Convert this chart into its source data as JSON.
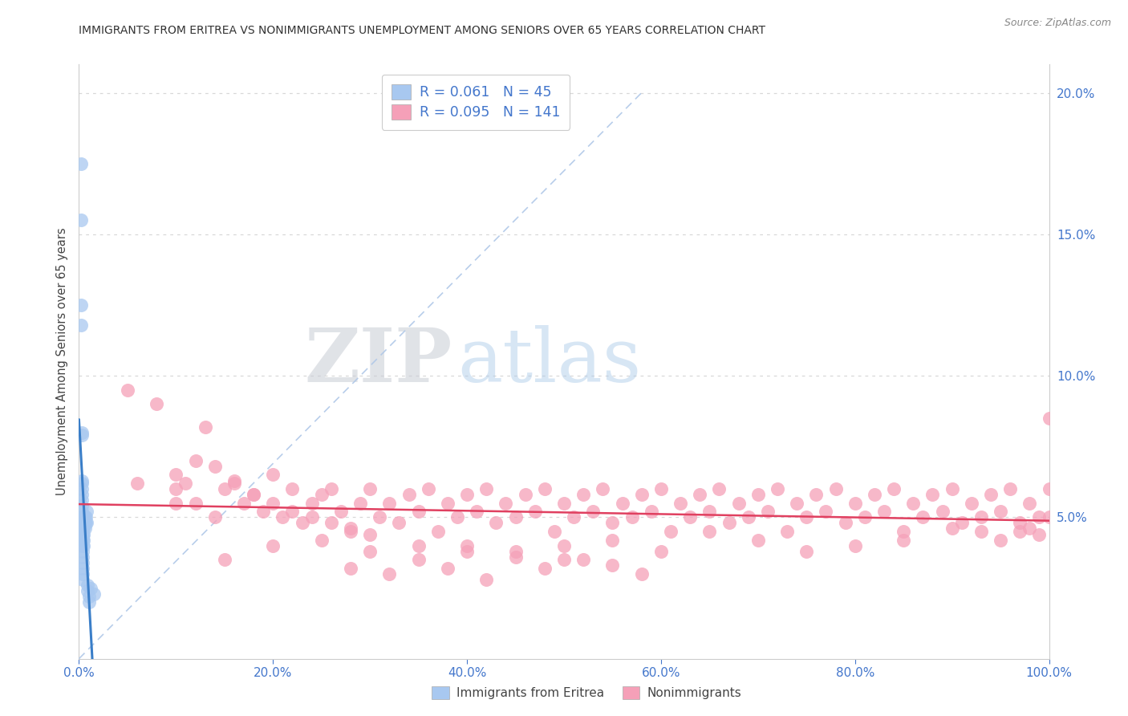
{
  "title": "IMMIGRANTS FROM ERITREA VS NONIMMIGRANTS UNEMPLOYMENT AMONG SENIORS OVER 65 YEARS CORRELATION CHART",
  "source": "Source: ZipAtlas.com",
  "ylabel": "Unemployment Among Seniors over 65 years",
  "xlim": [
    0.0,
    1.0
  ],
  "ylim": [
    0.0,
    0.21
  ],
  "yticks": [
    0.05,
    0.1,
    0.15,
    0.2
  ],
  "yticklabels": [
    "5.0%",
    "10.0%",
    "15.0%",
    "20.0%"
  ],
  "xticks": [
    0.0,
    0.2,
    0.4,
    0.6,
    0.8,
    1.0
  ],
  "xticklabels": [
    "0.0%",
    "20.0%",
    "40.0%",
    "60.0%",
    "80.0%",
    "100.0%"
  ],
  "legend_blue_label": "Immigrants from Eritrea",
  "legend_pink_label": "Nonimmigrants",
  "legend_blue_R": "0.061",
  "legend_blue_N": "45",
  "legend_pink_R": "0.095",
  "legend_pink_N": "141",
  "blue_scatter_color": "#a8c8f0",
  "pink_scatter_color": "#f5a0b8",
  "blue_line_color": "#3a7ec8",
  "pink_line_color": "#e04060",
  "diagonal_color": "#b0c8e8",
  "tick_color": "#4477cc",
  "title_color": "#333333",
  "source_color": "#888888",
  "grid_color": "#d8d8d8",
  "spine_color": "#cccccc",
  "watermark_zip_color": "#c8d0dc",
  "watermark_atlas_color": "#a8c4e0",
  "blue_x": [
    0.002,
    0.002,
    0.002,
    0.002,
    0.003,
    0.003,
    0.003,
    0.003,
    0.003,
    0.003,
    0.003,
    0.003,
    0.003,
    0.003,
    0.003,
    0.004,
    0.004,
    0.004,
    0.004,
    0.004,
    0.004,
    0.004,
    0.004,
    0.004,
    0.004,
    0.004,
    0.005,
    0.005,
    0.005,
    0.005,
    0.005,
    0.005,
    0.006,
    0.006,
    0.006,
    0.007,
    0.007,
    0.008,
    0.008,
    0.009,
    0.009,
    0.01,
    0.01,
    0.012,
    0.015
  ],
  "blue_y": [
    0.175,
    0.155,
    0.125,
    0.118,
    0.08,
    0.079,
    0.063,
    0.062,
    0.06,
    0.058,
    0.056,
    0.054,
    0.052,
    0.05,
    0.048,
    0.046,
    0.044,
    0.043,
    0.042,
    0.04,
    0.038,
    0.036,
    0.034,
    0.032,
    0.03,
    0.028,
    0.05,
    0.048,
    0.046,
    0.044,
    0.042,
    0.04,
    0.05,
    0.048,
    0.046,
    0.05,
    0.048,
    0.052,
    0.048,
    0.026,
    0.024,
    0.022,
    0.02,
    0.025,
    0.023
  ],
  "pink_x": [
    0.05,
    0.06,
    0.08,
    0.1,
    0.1,
    0.11,
    0.12,
    0.13,
    0.14,
    0.15,
    0.16,
    0.17,
    0.18,
    0.19,
    0.2,
    0.21,
    0.22,
    0.23,
    0.24,
    0.25,
    0.26,
    0.27,
    0.28,
    0.29,
    0.3,
    0.31,
    0.32,
    0.33,
    0.34,
    0.35,
    0.36,
    0.37,
    0.38,
    0.39,
    0.4,
    0.41,
    0.42,
    0.43,
    0.44,
    0.45,
    0.46,
    0.47,
    0.48,
    0.49,
    0.5,
    0.51,
    0.52,
    0.53,
    0.54,
    0.55,
    0.56,
    0.57,
    0.58,
    0.59,
    0.6,
    0.61,
    0.62,
    0.63,
    0.64,
    0.65,
    0.66,
    0.67,
    0.68,
    0.69,
    0.7,
    0.71,
    0.72,
    0.73,
    0.74,
    0.75,
    0.76,
    0.77,
    0.78,
    0.79,
    0.8,
    0.81,
    0.82,
    0.83,
    0.84,
    0.85,
    0.86,
    0.87,
    0.88,
    0.89,
    0.9,
    0.91,
    0.92,
    0.93,
    0.94,
    0.95,
    0.96,
    0.97,
    0.98,
    0.99,
    1.0,
    0.15,
    0.2,
    0.25,
    0.28,
    0.3,
    0.32,
    0.35,
    0.38,
    0.4,
    0.42,
    0.45,
    0.48,
    0.5,
    0.52,
    0.55,
    0.58,
    0.6,
    0.65,
    0.7,
    0.75,
    0.8,
    0.85,
    0.9,
    0.93,
    0.95,
    0.97,
    0.98,
    0.99,
    1.0,
    1.0,
    0.1,
    0.12,
    0.14,
    0.16,
    0.18,
    0.2,
    0.22,
    0.24,
    0.26,
    0.28,
    0.3,
    0.35,
    0.4,
    0.45,
    0.5,
    0.55
  ],
  "pink_y": [
    0.095,
    0.062,
    0.09,
    0.055,
    0.06,
    0.062,
    0.055,
    0.082,
    0.05,
    0.06,
    0.063,
    0.055,
    0.058,
    0.052,
    0.065,
    0.05,
    0.06,
    0.048,
    0.055,
    0.058,
    0.06,
    0.052,
    0.045,
    0.055,
    0.06,
    0.05,
    0.055,
    0.048,
    0.058,
    0.052,
    0.06,
    0.045,
    0.055,
    0.05,
    0.058,
    0.052,
    0.06,
    0.048,
    0.055,
    0.05,
    0.058,
    0.052,
    0.06,
    0.045,
    0.055,
    0.05,
    0.058,
    0.052,
    0.06,
    0.048,
    0.055,
    0.05,
    0.058,
    0.052,
    0.06,
    0.045,
    0.055,
    0.05,
    0.058,
    0.052,
    0.06,
    0.048,
    0.055,
    0.05,
    0.058,
    0.052,
    0.06,
    0.045,
    0.055,
    0.05,
    0.058,
    0.052,
    0.06,
    0.048,
    0.055,
    0.05,
    0.058,
    0.052,
    0.06,
    0.045,
    0.055,
    0.05,
    0.058,
    0.052,
    0.06,
    0.048,
    0.055,
    0.05,
    0.058,
    0.052,
    0.06,
    0.045,
    0.055,
    0.05,
    0.085,
    0.035,
    0.04,
    0.042,
    0.032,
    0.038,
    0.03,
    0.035,
    0.032,
    0.04,
    0.028,
    0.038,
    0.032,
    0.04,
    0.035,
    0.042,
    0.03,
    0.038,
    0.045,
    0.042,
    0.038,
    0.04,
    0.042,
    0.046,
    0.045,
    0.042,
    0.048,
    0.046,
    0.044,
    0.05,
    0.06,
    0.065,
    0.07,
    0.068,
    0.062,
    0.058,
    0.055,
    0.052,
    0.05,
    0.048,
    0.046,
    0.044,
    0.04,
    0.038,
    0.036,
    0.035,
    0.033
  ]
}
